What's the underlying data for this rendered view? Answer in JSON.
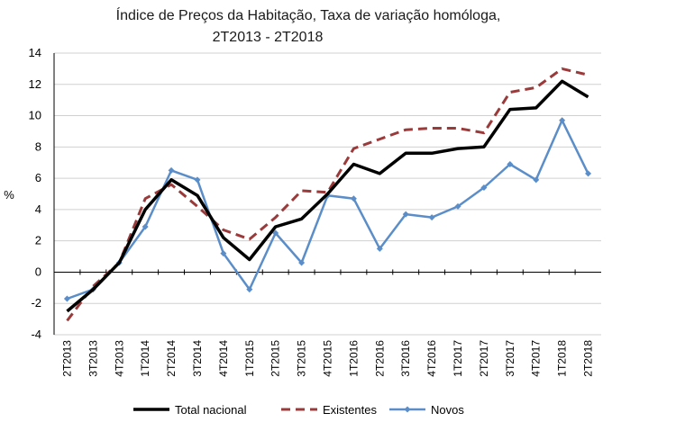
{
  "chart_data": {
    "type": "line",
    "title": "Índice de Preços da Habitação, Taxa de variação homóloga,",
    "subtitle": "2T2013 - 2T2018",
    "ylabel": "%",
    "xlabel": "",
    "ylim": [
      -4,
      14
    ],
    "yticks": [
      -4,
      -2,
      0,
      2,
      4,
      6,
      8,
      10,
      12,
      14
    ],
    "grid": "y",
    "legend": "bottom",
    "categories": [
      "2T2013",
      "3T2013",
      "4T2013",
      "1T2014",
      "2T2014",
      "3T2014",
      "4T2014",
      "1T2015",
      "2T2015",
      "3T2015",
      "4T2015",
      "1T2016",
      "2T2016",
      "3T2016",
      "4T2016",
      "1T2017",
      "2T2017",
      "3T2017",
      "4T2017",
      "1T2018",
      "2T2018"
    ],
    "series": [
      {
        "name": "Total nacional",
        "color": "#000000",
        "style": "solid",
        "values": [
          -2.5,
          -1.1,
          0.6,
          4.0,
          5.9,
          4.9,
          2.2,
          0.8,
          2.9,
          3.4,
          5.0,
          6.9,
          6.3,
          7.6,
          7.6,
          7.9,
          8.0,
          10.4,
          10.5,
          12.2,
          11.2
        ]
      },
      {
        "name": "Existentes",
        "color": "#9b3a3a",
        "style": "dashed",
        "values": [
          -3.1,
          -0.9,
          0.6,
          4.7,
          5.6,
          4.2,
          2.7,
          2.1,
          3.5,
          5.2,
          5.1,
          7.9,
          8.5,
          9.1,
          9.2,
          9.2,
          8.9,
          11.5,
          11.8,
          13.0,
          12.6
        ]
      },
      {
        "name": "Novos",
        "color": "#5b8ec9",
        "style": "solid-markers",
        "values": [
          -1.7,
          -1.1,
          0.6,
          2.9,
          6.5,
          5.9,
          1.2,
          -1.1,
          2.5,
          0.6,
          4.9,
          4.7,
          1.5,
          3.7,
          3.5,
          4.2,
          5.4,
          6.9,
          5.9,
          9.7,
          6.3
        ]
      }
    ]
  }
}
